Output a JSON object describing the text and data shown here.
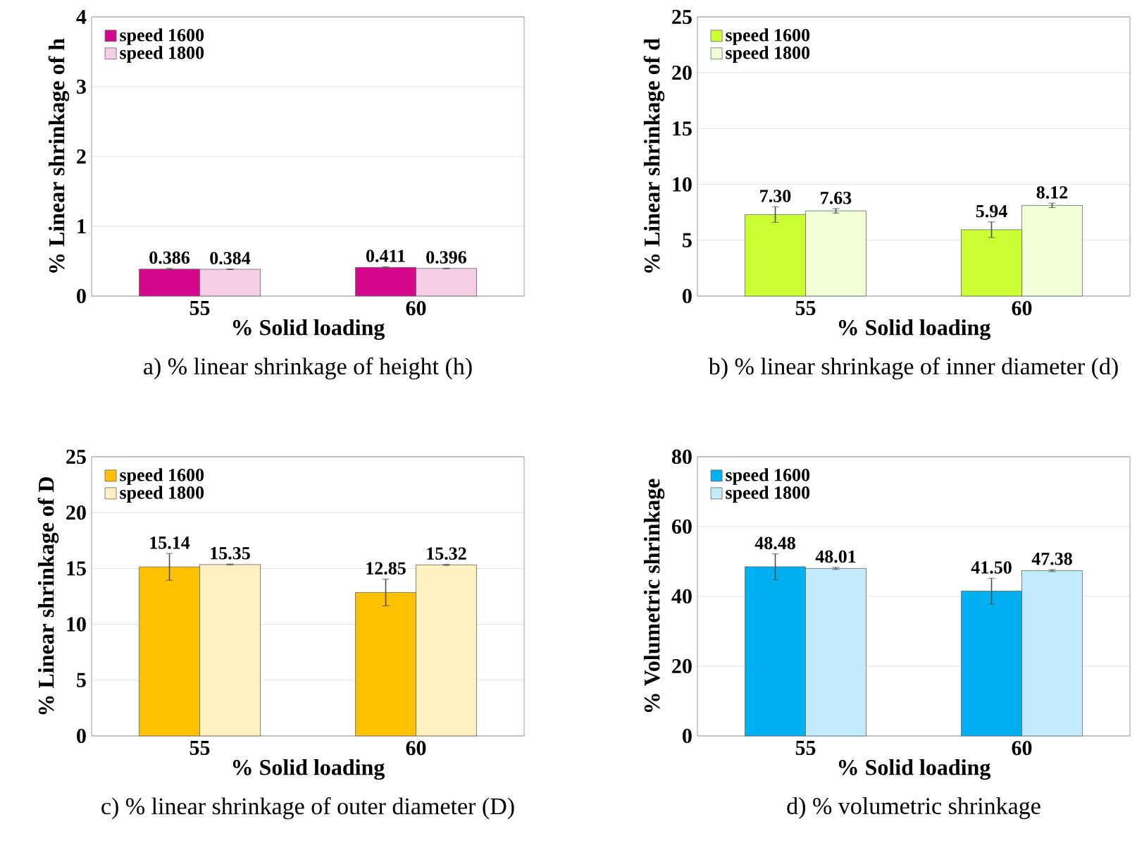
{
  "chart_data": [
    {
      "type": "bar",
      "title": "a) % linear shrinkage of height (h)",
      "xlabel": "% Solid loading",
      "ylabel": "% Linear shrinkage of h",
      "categories": [
        "55",
        "60"
      ],
      "ylim": [
        0,
        4
      ],
      "yticks": [
        0,
        1,
        2,
        3,
        4
      ],
      "grid": "y",
      "legend": "top left",
      "series": [
        {
          "name": "speed 1600",
          "color": "#d4078c",
          "values": [
            0.386,
            0.411
          ],
          "errors": [
            0.01,
            0.01
          ],
          "value_labels": [
            "0.386",
            "0.411"
          ]
        },
        {
          "name": "speed 1800",
          "color": "#f6cde6",
          "values": [
            0.384,
            0.396
          ],
          "errors": [
            0.005,
            0.005
          ],
          "value_labels": [
            "0.384",
            "0.396"
          ]
        }
      ]
    },
    {
      "type": "bar",
      "title": "b) % linear shrinkage of inner diameter (d)",
      "xlabel": "% Solid loading",
      "ylabel": "% Linear shrinkage of d",
      "categories": [
        "55",
        "60"
      ],
      "ylim": [
        0,
        25
      ],
      "yticks": [
        0,
        5,
        10,
        15,
        20,
        25
      ],
      "grid": "y",
      "legend": "top left",
      "series": [
        {
          "name": "speed 1600",
          "color": "#ccff33",
          "values": [
            7.3,
            5.94
          ],
          "errors": [
            0.7,
            0.7
          ],
          "value_labels": [
            "7.30",
            "5.94"
          ]
        },
        {
          "name": "speed 1800",
          "color": "#f2ffd6",
          "values": [
            7.63,
            8.12
          ],
          "errors": [
            0.2,
            0.2
          ],
          "value_labels": [
            "7.63",
            "8.12"
          ]
        }
      ]
    },
    {
      "type": "bar",
      "title": "c) % linear shrinkage of outer diameter (D)",
      "xlabel": "% Solid loading",
      "ylabel": "% Linear shrinkage of D",
      "categories": [
        "55",
        "60"
      ],
      "ylim": [
        0,
        25
      ],
      "yticks": [
        0,
        5,
        10,
        15,
        20,
        25
      ],
      "grid": "y",
      "legend": "top left",
      "series": [
        {
          "name": "speed 1600",
          "color": "#ffc000",
          "values": [
            15.14,
            12.85
          ],
          "errors": [
            1.2,
            1.2
          ],
          "value_labels": [
            "15.14",
            "12.85"
          ]
        },
        {
          "name": "speed 1800",
          "color": "#fff0c2",
          "values": [
            15.35,
            15.32
          ],
          "errors": [
            0.05,
            0.05
          ],
          "value_labels": [
            "15.35",
            "15.32"
          ]
        }
      ]
    },
    {
      "type": "bar",
      "title": "d) % volumetric shrinkage",
      "xlabel": "% Solid loading",
      "ylabel": "% Volumetric shrinkage",
      "categories": [
        "55",
        "60"
      ],
      "ylim": [
        0,
        80
      ],
      "yticks": [
        0,
        20,
        40,
        60,
        80
      ],
      "grid": "y",
      "legend": "top left",
      "series": [
        {
          "name": "speed 1600",
          "color": "#00b0f0",
          "values": [
            48.48,
            41.5
          ],
          "errors": [
            3.7,
            3.7
          ],
          "value_labels": [
            "48.48",
            "41.50"
          ]
        },
        {
          "name": "speed 1800",
          "color": "#c2ecfc",
          "values": [
            48.01,
            47.38
          ],
          "errors": [
            0.3,
            0.3
          ],
          "value_labels": [
            "48.01",
            "47.38"
          ]
        }
      ]
    }
  ]
}
